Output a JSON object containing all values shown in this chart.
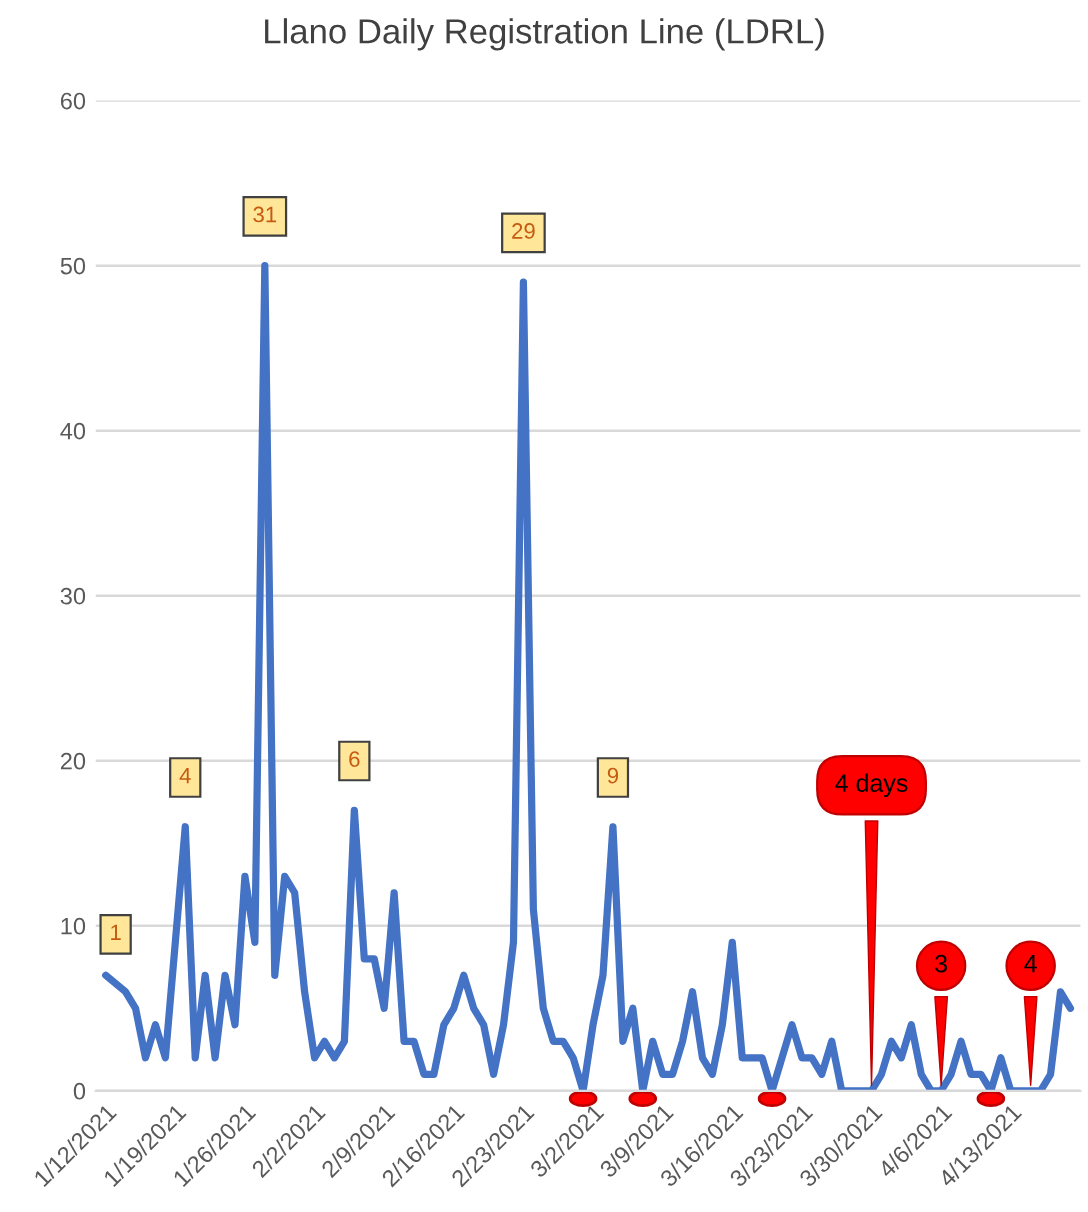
{
  "chart_data": {
    "type": "line",
    "title": "Llano Daily Registration Line (LDRL)",
    "x": [
      "2021-01-12",
      "2021-01-13",
      "2021-01-14",
      "2021-01-15",
      "2021-01-16",
      "2021-01-17",
      "2021-01-18",
      "2021-01-19",
      "2021-01-20",
      "2021-01-21",
      "2021-01-22",
      "2021-01-23",
      "2021-01-24",
      "2021-01-25",
      "2021-01-26",
      "2021-01-27",
      "2021-01-28",
      "2021-01-29",
      "2021-01-30",
      "2021-01-31",
      "2021-02-01",
      "2021-02-02",
      "2021-02-03",
      "2021-02-04",
      "2021-02-05",
      "2021-02-06",
      "2021-02-07",
      "2021-02-08",
      "2021-02-09",
      "2021-02-10",
      "2021-02-11",
      "2021-02-12",
      "2021-02-13",
      "2021-02-14",
      "2021-02-15",
      "2021-02-16",
      "2021-02-17",
      "2021-02-18",
      "2021-02-19",
      "2021-02-20",
      "2021-02-21",
      "2021-02-22",
      "2021-02-23",
      "2021-02-24",
      "2021-02-25",
      "2021-02-26",
      "2021-02-27",
      "2021-02-28",
      "2021-03-01",
      "2021-03-02",
      "2021-03-03",
      "2021-03-04",
      "2021-03-05",
      "2021-03-06",
      "2021-03-07",
      "2021-03-08",
      "2021-03-09",
      "2021-03-10",
      "2021-03-11",
      "2021-03-12",
      "2021-03-13",
      "2021-03-14",
      "2021-03-15",
      "2021-03-16",
      "2021-03-17",
      "2021-03-18",
      "2021-03-19",
      "2021-03-20",
      "2021-03-21",
      "2021-03-22",
      "2021-03-23",
      "2021-03-24",
      "2021-03-25",
      "2021-03-26",
      "2021-03-27",
      "2021-03-28",
      "2021-03-29",
      "2021-03-30",
      "2021-03-31",
      "2021-04-01",
      "2021-04-02",
      "2021-04-03",
      "2021-04-04",
      "2021-04-05",
      "2021-04-06",
      "2021-04-07",
      "2021-04-08",
      "2021-04-09",
      "2021-04-10",
      "2021-04-11",
      "2021-04-12",
      "2021-04-13",
      "2021-04-14",
      "2021-04-15",
      "2021-04-16",
      "2021-04-17",
      "2021-04-18",
      "2021-04-19"
    ],
    "series": [
      {
        "color": "#4472c4",
        "values": [
          7,
          6.5,
          6,
          5,
          2,
          4,
          2,
          9,
          16,
          2,
          7,
          2,
          7,
          4,
          13,
          9,
          50,
          7,
          13,
          12,
          6,
          2,
          3,
          2,
          3,
          17,
          8,
          8,
          5,
          12,
          3,
          3,
          1,
          1,
          4,
          5,
          7,
          5,
          4,
          1,
          4,
          9,
          49,
          11,
          5,
          3,
          3,
          2,
          0,
          4,
          7,
          16,
          3,
          5,
          0,
          3,
          1,
          1,
          3,
          6,
          2,
          1,
          4,
          9,
          2,
          2,
          2,
          0,
          2,
          4,
          2,
          2,
          1,
          3,
          0,
          0,
          0,
          0,
          1,
          3,
          2,
          4,
          1,
          0,
          0,
          1,
          3,
          1,
          1,
          0,
          2,
          0,
          0,
          0,
          0,
          1,
          6,
          5
        ]
      }
    ],
    "xlim": [
      "2021-01-11",
      "2021-04-20"
    ],
    "xticks": [
      {
        "value": "2021-01-12",
        "label": "1/12/2021"
      },
      {
        "value": "2021-01-19",
        "label": "1/19/2021"
      },
      {
        "value": "2021-01-26",
        "label": "1/26/2021"
      },
      {
        "value": "2021-02-02",
        "label": "2/2/2021"
      },
      {
        "value": "2021-02-09",
        "label": "2/9/2021"
      },
      {
        "value": "2021-02-16",
        "label": "2/16/2021"
      },
      {
        "value": "2021-02-23",
        "label": "2/23/2021"
      },
      {
        "value": "2021-03-02",
        "label": "3/2/2021"
      },
      {
        "value": "2021-03-09",
        "label": "3/9/2021"
      },
      {
        "value": "2021-03-16",
        "label": "3/16/2021"
      },
      {
        "value": "2021-03-23",
        "label": "3/23/2021"
      },
      {
        "value": "2021-03-30",
        "label": "3/30/2021"
      },
      {
        "value": "2021-04-06",
        "label": "4/6/2021"
      },
      {
        "value": "2021-04-13",
        "label": "4/13/2021"
      }
    ],
    "ylim": [
      0,
      60
    ],
    "yticks": [
      0,
      10,
      20,
      30,
      40,
      50,
      60
    ],
    "grid": "y",
    "marker": "none",
    "line_style": "solid",
    "legend": false,
    "annotations": [
      {
        "text": "1",
        "x": "2021-01-13",
        "y": 6.5
      },
      {
        "text": "4",
        "x": "2021-01-20",
        "y": 16
      },
      {
        "text": "31",
        "x": "2021-01-28",
        "y": 50
      },
      {
        "text": "6",
        "x": "2021-02-06",
        "y": 17
      },
      {
        "text": "29",
        "x": "2021-02-23",
        "y": 49
      },
      {
        "text": "9",
        "x": "2021-03-04",
        "y": 16
      },
      {
        "text": "4 days",
        "x": "2021-03-30",
        "y": 0
      },
      {
        "text": "3",
        "x": "2021-04-06",
        "y": 0
      },
      {
        "text": "4",
        "x": "2021-04-15",
        "y": 0
      }
    ]
  }
}
